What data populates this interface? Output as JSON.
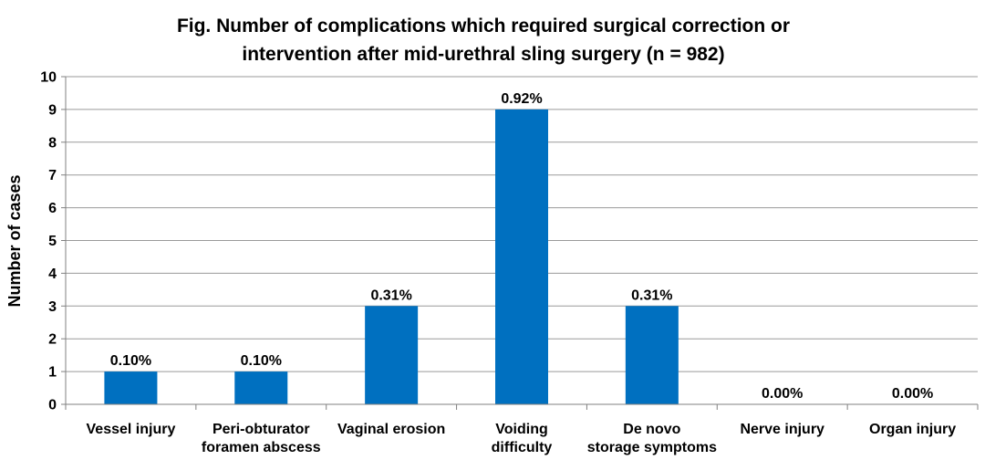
{
  "chart_data": {
    "type": "bar",
    "title_lines": [
      "Fig. Number of complications which required surgical correction or",
      "intervention after mid-urethral sling surgery (n = 982)"
    ],
    "ylabel": "Number of cases",
    "xlabel": "",
    "ylim": [
      0,
      10
    ],
    "yticks": [
      "0",
      "1",
      "2",
      "3",
      "4",
      "5",
      "6",
      "7",
      "8",
      "9",
      "10"
    ],
    "grid": true,
    "legend": "none",
    "bar_color": "#0070C0",
    "categories": [
      [
        "Vessel injury"
      ],
      [
        "Peri-obturator",
        "foramen abscess"
      ],
      [
        "Vaginal erosion"
      ],
      [
        "Voiding",
        "difficulty"
      ],
      [
        "De novo",
        "storage symptoms"
      ],
      [
        "Nerve injury"
      ],
      [
        "Organ injury"
      ]
    ],
    "values": [
      1,
      1,
      3,
      9,
      3,
      0,
      0
    ],
    "data_labels": [
      "0.10%",
      "0.10%",
      "0.31%",
      "0.92%",
      "0.31%",
      "0.00%",
      "0.00%"
    ]
  }
}
